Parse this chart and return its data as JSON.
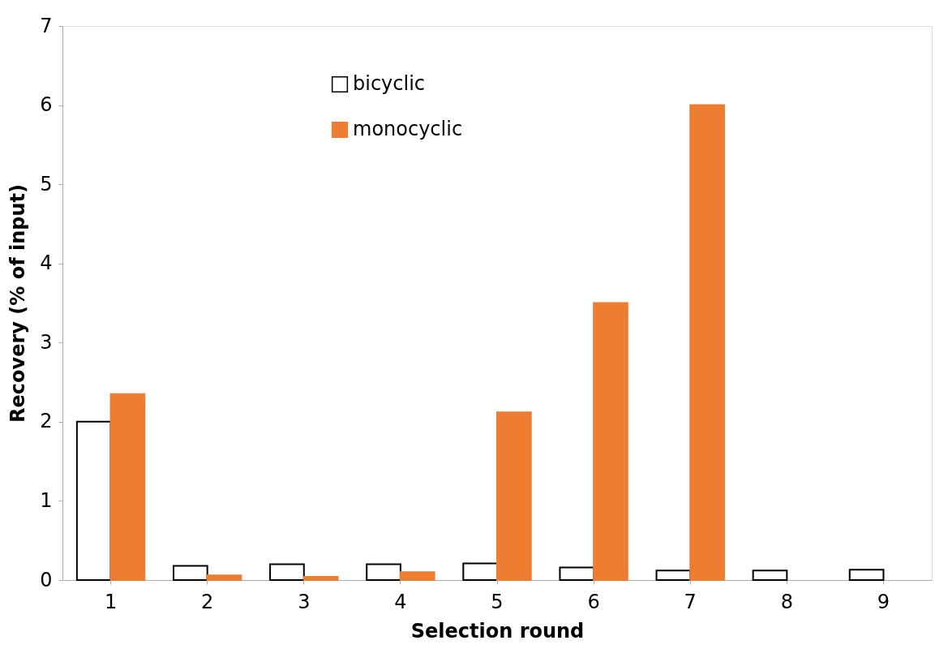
{
  "chart_data": {
    "type": "bar",
    "xlabel": "Selection round",
    "ylabel": "Recovery (% of input)",
    "categories": [
      "1",
      "2",
      "3",
      "4",
      "5",
      "6",
      "7",
      "8",
      "9"
    ],
    "series": [
      {
        "name": "bicyclic",
        "color": "#ffffff",
        "values": [
          2.0,
          0.18,
          0.2,
          0.2,
          0.21,
          0.16,
          0.12,
          0.12,
          0.13
        ]
      },
      {
        "name": "monocyclic",
        "color": "#ed7d31",
        "values": [
          2.35,
          0.06,
          0.04,
          0.1,
          2.12,
          3.5,
          6.0,
          null,
          null
        ]
      }
    ],
    "ylim": [
      0,
      7
    ],
    "yticks": [
      0,
      1,
      2,
      3,
      4,
      5,
      6,
      7
    ],
    "grid": false,
    "legend": "top"
  }
}
